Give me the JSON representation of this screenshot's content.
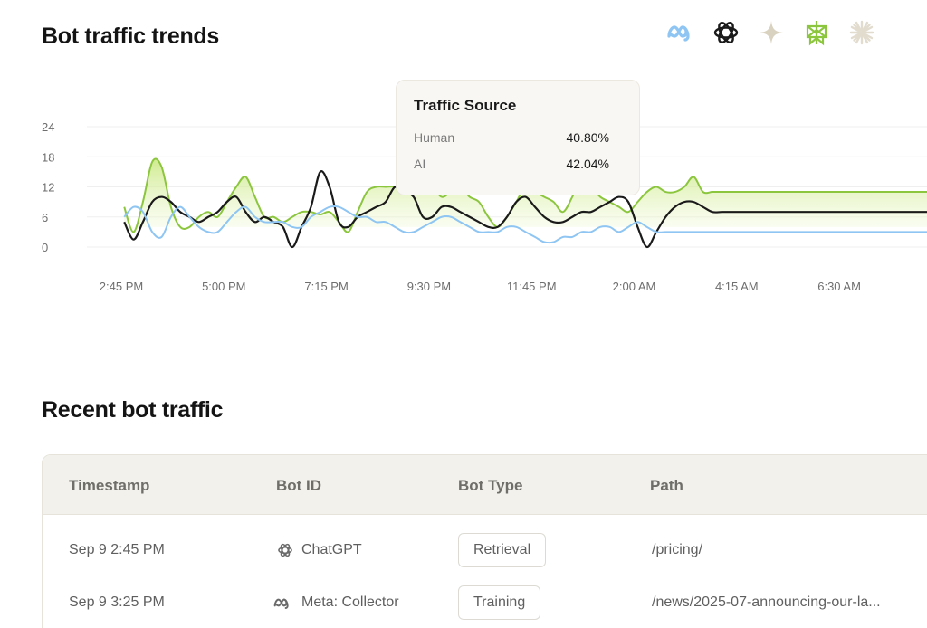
{
  "trends": {
    "title": "Bot traffic trends",
    "bot_filters": [
      {
        "icon": "meta-icon",
        "color": "#8ec5f2"
      },
      {
        "icon": "openai-icon",
        "color": "#1a1a1a"
      },
      {
        "icon": "sparkle-icon",
        "color": "#d9d2c0"
      },
      {
        "icon": "perplexity-icon",
        "color": "#8cc63f"
      },
      {
        "icon": "claude-icon",
        "color": "#e2dccf"
      }
    ]
  },
  "chart_data": {
    "type": "line",
    "y_ticks": [
      "24",
      "18",
      "12",
      "6",
      "0"
    ],
    "ylim": [
      0,
      24
    ],
    "x_tick_labels": [
      "2:45 PM",
      "5:00 PM",
      "7:15 PM",
      "9:30 PM",
      "11:45 PM",
      "2:00 AM",
      "4:15 AM",
      "6:30 AM"
    ],
    "x": [
      0,
      1,
      2,
      3,
      4,
      5,
      6,
      7,
      8,
      9,
      10,
      11,
      12,
      13,
      14,
      15,
      16,
      17,
      18,
      19,
      20,
      21,
      22,
      23,
      24,
      25,
      26,
      27,
      28,
      29,
      30,
      31,
      32,
      33,
      34,
      35,
      36,
      37,
      38,
      39,
      40,
      41,
      42,
      43,
      44,
      45,
      46,
      47,
      48,
      49,
      50,
      51,
      52,
      53,
      54,
      55,
      56,
      57,
      58,
      59,
      60,
      61,
      62,
      63,
      64,
      65,
      66,
      67,
      68,
      69,
      70,
      71,
      72,
      73,
      74,
      75,
      76,
      77,
      78,
      79,
      80,
      81,
      82,
      83,
      84,
      85,
      86,
      87,
      88
    ],
    "xlim": [
      -4,
      86
    ],
    "series": [
      {
        "color": "#8cc63f",
        "fill": true,
        "values": [
          8,
          3,
          9,
          17,
          16,
          8,
          4,
          4,
          6,
          7,
          6,
          9,
          12,
          14,
          10,
          6,
          6,
          5,
          6,
          7,
          7,
          6.5,
          7,
          5,
          3,
          7,
          11,
          12,
          12,
          12,
          11,
          12,
          12,
          12,
          10,
          11,
          12,
          10,
          9,
          6,
          4,
          6,
          9,
          12,
          11,
          10,
          9,
          7,
          10,
          14,
          12,
          10,
          9,
          8,
          7,
          9,
          11,
          12,
          11,
          11,
          12,
          14,
          11,
          11,
          11,
          11,
          11,
          11,
          11,
          11,
          11,
          11,
          11,
          11,
          11,
          11,
          11,
          11,
          11,
          11,
          11,
          11,
          11,
          11,
          11,
          11,
          11,
          11,
          11
        ]
      },
      {
        "color": "#1a1a1a",
        "fill": false,
        "values": [
          5,
          1.5,
          5,
          9,
          10,
          9,
          7,
          6,
          5,
          6,
          7,
          9,
          10,
          7,
          5,
          6,
          5,
          4,
          0,
          4,
          8,
          15,
          12,
          5,
          4,
          6,
          7,
          8,
          9,
          12,
          11,
          10,
          6,
          6,
          8,
          8,
          7,
          6,
          5,
          4,
          4,
          6,
          9,
          10,
          8,
          6,
          5,
          5,
          6,
          7,
          7,
          8,
          9,
          10,
          9,
          4,
          0,
          3,
          6,
          8,
          9,
          9,
          8,
          7,
          7,
          7,
          7,
          7,
          7,
          7,
          7,
          7,
          7,
          7,
          7,
          7,
          7,
          7,
          7,
          7,
          7,
          7,
          7,
          7,
          7,
          7,
          7,
          7,
          7
        ]
      },
      {
        "color": "#8ec5f2",
        "fill": false,
        "values": [
          6,
          8,
          7,
          3,
          2,
          6,
          8,
          6,
          4,
          3,
          3,
          5,
          7,
          8,
          6,
          5,
          5,
          5,
          4,
          4,
          6,
          7,
          8,
          8,
          7,
          6,
          6,
          5,
          5,
          4,
          3,
          3,
          4,
          5,
          6,
          6,
          5,
          4,
          3,
          3,
          3,
          4,
          4,
          3,
          2,
          1,
          1,
          2,
          2,
          3,
          3,
          4,
          4,
          3,
          4,
          5,
          4,
          3,
          3,
          3,
          3,
          3,
          3,
          3,
          3,
          3,
          3,
          3,
          3,
          3,
          3,
          3,
          3,
          3,
          3,
          3,
          3,
          3,
          3,
          3,
          3,
          3,
          3,
          3,
          3,
          3,
          3,
          3,
          3
        ]
      }
    ]
  },
  "tooltip": {
    "title": "Traffic Source",
    "rows": [
      {
        "label": "Human",
        "value": "40.80%"
      },
      {
        "label": "AI",
        "value": "42.04%"
      }
    ]
  },
  "recent": {
    "title": "Recent bot traffic",
    "columns": [
      "Timestamp",
      "Bot ID",
      "Bot Type",
      "Path"
    ],
    "rows": [
      {
        "timestamp": "Sep 9 2:45 PM",
        "bot_icon": "openai-icon",
        "bot": "ChatGPT",
        "type": "Retrieval",
        "path": "/pricing/"
      },
      {
        "timestamp": "Sep 9 3:25 PM",
        "bot_icon": "meta-icon",
        "bot": "Meta: Collector",
        "type": "Training",
        "path": "/news/2025-07-announcing-our-la..."
      }
    ]
  }
}
